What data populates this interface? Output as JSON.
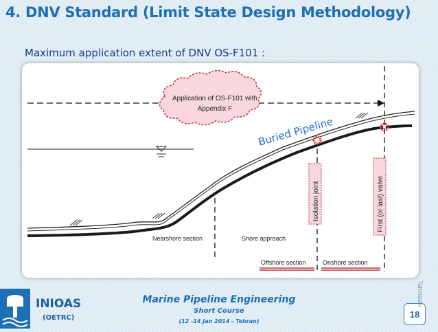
{
  "slide": {
    "title": "4. DNV Standard (Limit State Design Methodology)",
    "subtitle": "Maximum application extent of DNV OS-F101 :",
    "page_number": "18",
    "author": "Tahmasbi"
  },
  "diagram": {
    "cloud_line1": "Application of OS-F101 with",
    "cloud_line2": "Appendix F",
    "buried_label": "Buried Pipeline",
    "nearshore_label": "Nearshore section",
    "shore_label": "Shore approach",
    "isolation_label": "Isolation joint",
    "valve_label": "First (or last) valve",
    "offshore_label": "Offshore section",
    "onshore_label": "Onshore section",
    "colors": {
      "pipe": "#1a1a1a",
      "cloud_fill": "#f8d8dc",
      "cloud_border": "#c0303a",
      "buried_text": "#2a6fd0",
      "marker": "#e03030"
    }
  },
  "footer": {
    "org": "INIOAS",
    "org_sub": "(OETRC)",
    "course_title": "Marine Pipeline Engineering",
    "course_sub": "Short Course",
    "course_date": "(12 -14 Jan 2014 - Tehran)",
    "logo_icon": "water-tower-icon"
  }
}
